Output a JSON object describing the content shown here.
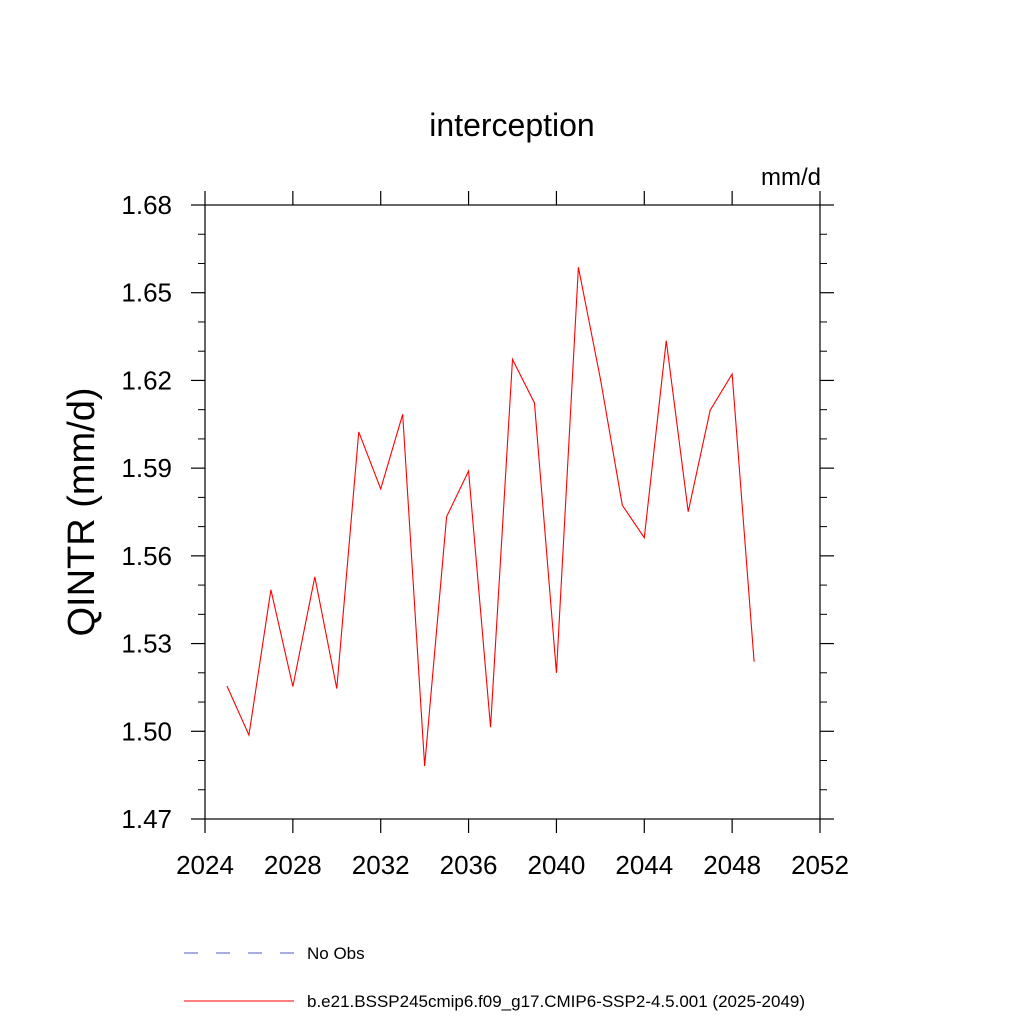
{
  "chart_data": {
    "type": "line",
    "title": "interception",
    "units": "mm/d",
    "ylabel": "QINTR  (mm/d)",
    "xlabel": "",
    "xlim": [
      2024,
      2052
    ],
    "ylim": [
      1.47,
      1.68
    ],
    "xticks": [
      2024,
      2028,
      2032,
      2036,
      2040,
      2044,
      2048,
      2052
    ],
    "xtick_labels": [
      "2024",
      "2028",
      "2032",
      "2036",
      "2040",
      "2044",
      "2048",
      "2052"
    ],
    "yticks": [
      1.47,
      1.5,
      1.53,
      1.56,
      1.59,
      1.62,
      1.65,
      1.68
    ],
    "ytick_labels": [
      "1.47",
      "1.50",
      "1.53",
      "1.56",
      "1.59",
      "1.62",
      "1.65",
      "1.68"
    ],
    "grid": false,
    "legend_position": "bottom",
    "series": [
      {
        "name": "b.e21.BSSP245cmip6.f09_g17.CMIP6-SSP2-4.5.001 (2025-2049)",
        "color": "#ff0000",
        "style": "solid",
        "x": [
          2025,
          2026,
          2027,
          2028,
          2029,
          2030,
          2031,
          2032,
          2033,
          2034,
          2035,
          2036,
          2037,
          2038,
          2039,
          2040,
          2041,
          2042,
          2043,
          2044,
          2045,
          2046,
          2047,
          2048,
          2049
        ],
        "y": [
          1.5155,
          1.4987,
          1.5484,
          1.5153,
          1.5528,
          1.5146,
          1.6024,
          1.5829,
          1.6084,
          1.4881,
          1.5734,
          1.589,
          1.5014,
          1.6272,
          1.6123,
          1.52,
          1.6587,
          1.6206,
          1.5773,
          1.5662,
          1.6336,
          1.5751,
          1.6098,
          1.6222,
          1.5238
        ]
      }
    ],
    "legend": [
      {
        "label": "No Obs",
        "color": "#5555cc",
        "style": "dashed"
      },
      {
        "label": "b.e21.BSSP245cmip6.f09_g17.CMIP6-SSP2-4.5.001 (2025-2049)",
        "color": "#ff0000",
        "style": "solid"
      }
    ]
  }
}
